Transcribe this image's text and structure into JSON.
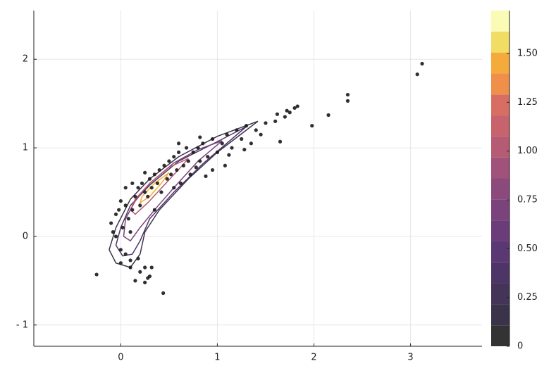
{
  "chart_data": {
    "type": "scatter-density",
    "xlim": [
      -0.9,
      3.74
    ],
    "ylim": [
      -1.24,
      2.55
    ],
    "xticks": [
      0,
      1,
      2,
      3
    ],
    "yticks": [
      {
        "value": -1,
        "label": "- 1"
      },
      0,
      1,
      2
    ],
    "grid": true,
    "point_color": "#1a1a1a",
    "x": [
      -0.25,
      0.44,
      0.15,
      0.25,
      0.28,
      0.32,
      0.25,
      0.2,
      0.1,
      0.05,
      0.0,
      -0.05,
      -0.08,
      -0.1,
      -0.05,
      -0.02,
      0.0,
      0.05,
      0.08,
      0.1,
      0.12,
      0.15,
      0.18,
      0.2,
      0.22,
      0.25,
      0.28,
      0.3,
      0.32,
      0.35,
      0.38,
      0.4,
      0.42,
      0.45,
      0.48,
      0.5,
      0.52,
      0.55,
      0.58,
      0.6,
      0.62,
      0.65,
      0.68,
      0.7,
      0.72,
      0.75,
      0.8,
      0.82,
      0.85,
      0.88,
      0.9,
      0.95,
      1.0,
      1.05,
      1.08,
      1.1,
      1.15,
      1.2,
      1.25,
      1.3,
      1.35,
      1.4,
      1.45,
      1.5,
      1.6,
      1.62,
      1.65,
      1.7,
      1.72,
      1.75,
      1.8,
      1.83,
      1.98,
      2.15,
      2.35,
      2.35,
      3.07,
      3.12,
      0.02,
      0.05,
      0.0,
      0.1,
      0.18,
      0.3,
      0.35,
      0.55,
      0.78,
      0.95,
      1.12,
      1.28,
      0.12,
      0.25,
      0.6,
      0.82
    ],
    "y": [
      -0.43,
      -0.64,
      -0.5,
      -0.52,
      -0.47,
      -0.35,
      -0.35,
      -0.4,
      -0.27,
      -0.2,
      -0.15,
      0.0,
      0.05,
      0.15,
      0.25,
      0.3,
      0.4,
      0.35,
      0.2,
      0.05,
      0.3,
      0.45,
      0.55,
      0.35,
      0.6,
      0.5,
      0.45,
      0.65,
      0.55,
      0.7,
      0.6,
      0.75,
      0.5,
      0.8,
      0.65,
      0.85,
      0.7,
      0.9,
      0.75,
      0.95,
      0.6,
      0.8,
      1.0,
      0.85,
      0.7,
      0.95,
      1.0,
      0.85,
      1.05,
      0.68,
      0.9,
      1.1,
      0.95,
      1.05,
      0.8,
      1.15,
      1.0,
      1.2,
      1.1,
      1.25,
      1.05,
      1.2,
      1.15,
      1.28,
      1.3,
      1.38,
      1.07,
      1.35,
      1.42,
      1.4,
      1.45,
      1.47,
      1.25,
      1.37,
      1.53,
      1.6,
      1.83,
      1.95,
      0.1,
      0.55,
      -0.3,
      -0.35,
      -0.25,
      -0.45,
      0.3,
      0.55,
      0.78,
      0.75,
      0.92,
      0.98,
      0.6,
      0.72,
      1.05,
      1.12
    ],
    "contours": [
      {
        "level": 0.11,
        "x": [
          1.42,
          1.0,
          0.6,
          0.3,
          0.1,
          -0.05,
          -0.12,
          -0.05,
          0.1,
          0.2,
          0.25,
          0.4,
          0.7,
          1.0,
          1.3,
          1.42
        ],
        "y": [
          1.3,
          1.13,
          0.9,
          0.65,
          0.42,
          0.1,
          -0.15,
          -0.3,
          -0.35,
          -0.2,
          0.05,
          0.3,
          0.65,
          0.95,
          1.2,
          1.3
        ]
      },
      {
        "level": 0.33,
        "x": [
          1.3,
          1.0,
          0.6,
          0.3,
          0.1,
          0.0,
          -0.05,
          0.02,
          0.12,
          0.2,
          0.3,
          0.55,
          0.85,
          1.15,
          1.3
        ],
        "y": [
          1.24,
          1.07,
          0.85,
          0.58,
          0.35,
          0.1,
          -0.1,
          -0.22,
          -0.2,
          -0.05,
          0.2,
          0.5,
          0.82,
          1.1,
          1.24
        ]
      },
      {
        "level": 0.66,
        "x": [
          1.05,
          0.8,
          0.55,
          0.3,
          0.15,
          0.05,
          0.03,
          0.1,
          0.2,
          0.35,
          0.55,
          0.8,
          1.05
        ],
        "y": [
          1.08,
          0.98,
          0.83,
          0.6,
          0.4,
          0.2,
          0.0,
          -0.05,
          0.1,
          0.3,
          0.55,
          0.85,
          1.08
        ]
      },
      {
        "level": 1.0,
        "x": [
          0.7,
          0.5,
          0.3,
          0.15,
          0.1,
          0.15,
          0.28,
          0.45,
          0.62,
          0.7
        ],
        "y": [
          0.88,
          0.78,
          0.6,
          0.42,
          0.3,
          0.25,
          0.38,
          0.58,
          0.78,
          0.88
        ]
      },
      {
        "level": 1.4,
        "x": [
          0.5,
          0.35,
          0.22,
          0.2,
          0.3,
          0.42,
          0.5
        ],
        "y": [
          0.72,
          0.6,
          0.45,
          0.38,
          0.45,
          0.6,
          0.72
        ]
      },
      {
        "level": 1.65,
        "x": [
          0.4,
          0.32,
          0.28,
          0.32,
          0.38,
          0.4
        ],
        "y": [
          0.62,
          0.56,
          0.5,
          0.5,
          0.56,
          0.62
        ]
      }
    ],
    "colorbar": {
      "lim": [
        0,
        1.72
      ],
      "levels": [
        0,
        0.1075,
        0.215,
        0.3225,
        0.43,
        0.5375,
        0.645,
        0.7525,
        0.86,
        0.9675,
        1.075,
        1.1825,
        1.29,
        1.3975,
        1.505,
        1.6125,
        1.72
      ],
      "colors": [
        "#333333",
        "#3b3349",
        "#443457",
        "#4e3567",
        "#5a3874",
        "#6a3d7a",
        "#7b437c",
        "#8c4a7c",
        "#a0527a",
        "#b55b74",
        "#c7636c",
        "#d86e63",
        "#ef8f4a",
        "#f5ab3c",
        "#f1dc64",
        "#fafbb5"
      ],
      "ticks": [
        0,
        0.25,
        {
          "value": 0.5,
          "label": "0.50"
        },
        0.75,
        {
          "value": 1.0,
          "label": "1.00"
        },
        1.25,
        {
          "value": 1.5,
          "label": "1.50"
        }
      ]
    }
  }
}
